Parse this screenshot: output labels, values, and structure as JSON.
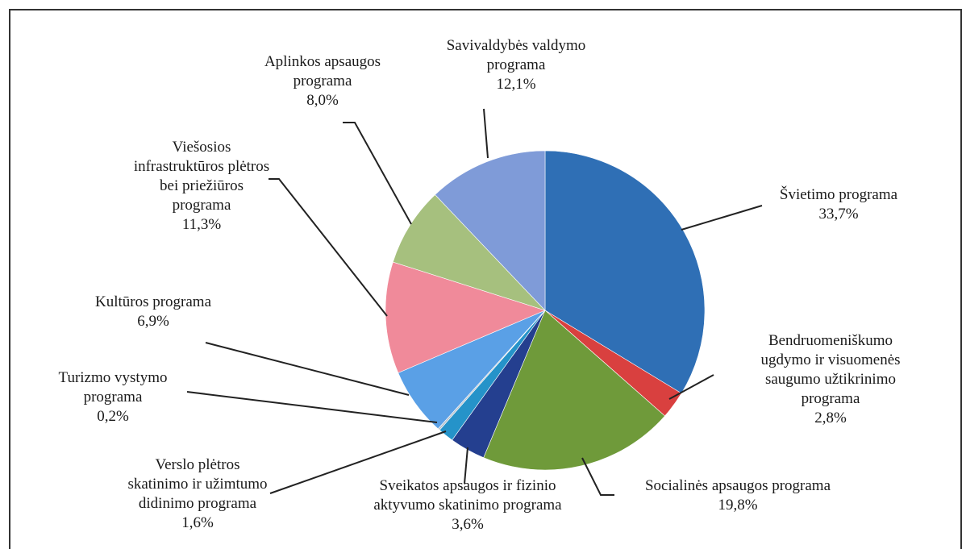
{
  "chart_data": {
    "type": "pie",
    "categories": [
      "Švietimo programa",
      "Bendruomeniškumo\nugdymo ir visuomenės\nsaugumo užtikrinimo\nprograma",
      "Socialinės apsaugos  programa",
      "Sveikatos apsaugos ir fizinio\naktyvumo skatinimo programa",
      "Verslo plėtros\nskatinimo ir užimtumo\ndidinimo programa",
      "Turizmo vystymo\nprograma",
      "Kultūros  programa",
      "Viešosios\ninfrastruktūros plėtros\nbei priežiūros\nprograma",
      "Aplinkos apsaugos\nprograma",
      "Savivaldybės valdymo\nprograma"
    ],
    "values": [
      33.7,
      2.8,
      19.8,
      3.6,
      1.6,
      0.2,
      6.9,
      11.3,
      8.0,
      12.1
    ],
    "value_labels": [
      "33,7%",
      "2,8%",
      "19,8%",
      "3,6%",
      "1,6%",
      "0,2%",
      "6,9%",
      "11,3%",
      "8,0%",
      "12,1%"
    ],
    "colors": [
      "#2f6fb5",
      "#d9403f",
      "#6f9a3a",
      "#243f8f",
      "#2593c9",
      "#b8c4d0",
      "#5aa0e6",
      "#f08a9a",
      "#a6c07e",
      "#7f9bd8"
    ]
  }
}
